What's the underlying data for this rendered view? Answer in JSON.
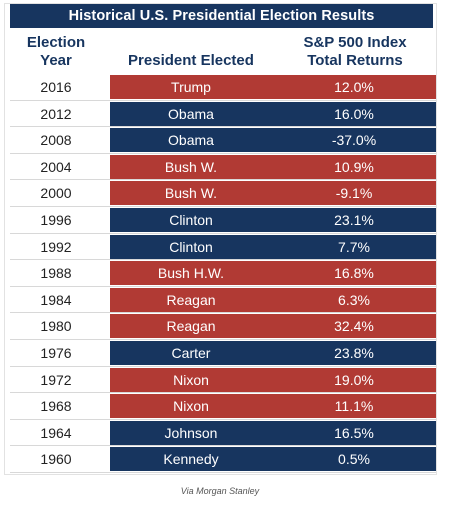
{
  "title": "Historical U.S. Presidential Election Results",
  "headers": {
    "year_line1": "Election",
    "year_line2": "Year",
    "president": "President Elected",
    "sp_line1": "S&P 500 Index",
    "sp_line2": "Total Returns"
  },
  "colors": {
    "republican": "#b13a34",
    "democrat": "#17355f",
    "header_text": "#17355f"
  },
  "rows": [
    {
      "year": "2016",
      "president": "Trump",
      "return": "12.0%",
      "party": "rep"
    },
    {
      "year": "2012",
      "president": "Obama",
      "return": "16.0%",
      "party": "dem"
    },
    {
      "year": "2008",
      "president": "Obama",
      "return": "-37.0%",
      "party": "dem"
    },
    {
      "year": "2004",
      "president": "Bush W.",
      "return": "10.9%",
      "party": "rep"
    },
    {
      "year": "2000",
      "president": "Bush W.",
      "return": "-9.1%",
      "party": "rep"
    },
    {
      "year": "1996",
      "president": "Clinton",
      "return": "23.1%",
      "party": "dem"
    },
    {
      "year": "1992",
      "president": "Clinton",
      "return": "7.7%",
      "party": "dem"
    },
    {
      "year": "1988",
      "president": "Bush H.W.",
      "return": "16.8%",
      "party": "rep"
    },
    {
      "year": "1984",
      "president": "Reagan",
      "return": "6.3%",
      "party": "rep"
    },
    {
      "year": "1980",
      "president": "Reagan",
      "return": "32.4%",
      "party": "rep"
    },
    {
      "year": "1976",
      "president": "Carter",
      "return": "23.8%",
      "party": "dem"
    },
    {
      "year": "1972",
      "president": "Nixon",
      "return": "19.0%",
      "party": "rep"
    },
    {
      "year": "1968",
      "president": "Nixon",
      "return": "11.1%",
      "party": "rep"
    },
    {
      "year": "1964",
      "president": "Johnson",
      "return": "16.5%",
      "party": "dem"
    },
    {
      "year": "1960",
      "president": "Kennedy",
      "return": "0.5%",
      "party": "dem"
    }
  ],
  "source": "Via Morgan Stanley"
}
